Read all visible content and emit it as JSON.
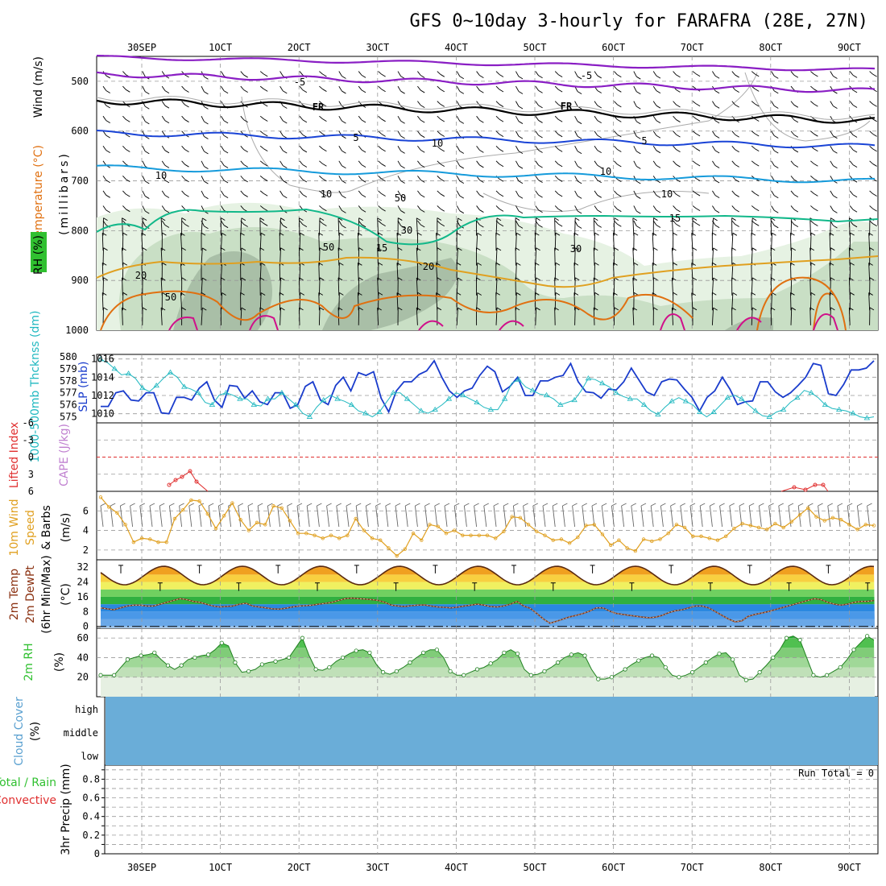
{
  "title": "GFS 0~10day 3-hourly for FARAFRA (28E, 27N)",
  "time_labels": [
    "30SEP",
    "1OCT",
    "2OCT",
    "3OCT",
    "4OCT",
    "5OCT",
    "6OCT",
    "7OCT",
    "8OCT",
    "9OCT"
  ],
  "colors": {
    "purple": "#8a1ec4",
    "black": "#000000",
    "blue": "#1a44d6",
    "lightblue": "#169bdb",
    "green": "#12b88a",
    "orange": "#e0a020",
    "darkorange": "#e07010",
    "magenta": "#d0108a",
    "cyan": "#20b8c0",
    "slp": "#1a3ccc",
    "red": "#e03030",
    "rh": "#30c030",
    "cloud": "#6aadd8"
  },
  "panels": {
    "upper": {
      "ylabel_wind": "Wind (m/s)",
      "ylabel_temp": "Temperature (°C)",
      "ylabel_rh": "RH (%)",
      "ylabel_units": "(millibars)",
      "yticks": [
        "500",
        "600",
        "700",
        "800",
        "900",
        "1000"
      ],
      "labels": [
        {
          "text": "-5",
          "color": "purple"
        },
        {
          "text": "-5",
          "color": "purple"
        },
        {
          "text": "FR",
          "color": "black"
        },
        {
          "text": "FR",
          "color": "black"
        },
        {
          "text": "5",
          "color": "blue"
        },
        {
          "text": "5",
          "color": "blue"
        },
        {
          "text": "10",
          "color": "lightblue"
        },
        {
          "text": "10",
          "color": "lightblue"
        },
        {
          "text": "15",
          "color": "green"
        },
        {
          "text": "15",
          "color": "green"
        },
        {
          "text": "20",
          "color": "orange"
        },
        {
          "text": "20",
          "color": "orange"
        },
        {
          "text": "10",
          "color": "gray"
        },
        {
          "text": "10",
          "color": "gray"
        },
        {
          "text": "10",
          "color": "gray"
        },
        {
          "text": "30",
          "color": "gray"
        },
        {
          "text": "50",
          "color": "gray"
        },
        {
          "text": "50",
          "color": "gray"
        },
        {
          "text": "50",
          "color": "gray"
        },
        {
          "text": "30",
          "color": "gray"
        }
      ]
    },
    "thickness": {
      "ylabel_thk": "1000-500mb Thcknss (dm)",
      "ylabel_slp": "SLP (mb)",
      "yticks_left": [
        "575",
        "576",
        "577",
        "578",
        "579",
        "580"
      ],
      "yticks_right": [
        "1010",
        "1012",
        "1014",
        "1016"
      ]
    },
    "cape": {
      "ylabel_li": "Lifted Index",
      "ylabel_cape": "CAPE (J/kg)",
      "yticks": [
        "-6",
        "-3",
        "0",
        "3",
        "6"
      ]
    },
    "wind10": {
      "ylabel": "10m Wind Speed & Barbs",
      "ylabel_units": "(m/s)",
      "yticks": [
        "2",
        "4",
        "6"
      ]
    },
    "temp2m": {
      "ylabel1": "2m Temp",
      "ylabel2": "2m DewPt",
      "ylabel3": "(6hr Min/Max)",
      "ylabel_units": "(°C)",
      "yticks": [
        "0",
        "8",
        "16",
        "24",
        "32"
      ]
    },
    "rh2m": {
      "ylabel": "2m RH",
      "ylabel_units": "(%)",
      "yticks": [
        "20",
        "40",
        "60"
      ]
    },
    "cloud": {
      "ylabel": "Cloud Cover",
      "ylabel_units": "(%)",
      "levels": [
        "high",
        "middle",
        "low"
      ]
    },
    "precip": {
      "ylabel1": "Total / Rain",
      "ylabel2": "Convective",
      "ylabel3": "3hr Precip (mm)",
      "yticks": [
        "0",
        "0.2",
        "0.4",
        "0.6",
        "0.8"
      ],
      "run_total": "Run Total = 0"
    }
  },
  "chart_data": [
    {
      "type": "line",
      "name": "slp",
      "ylabel": "SLP (mb)",
      "ylim": [
        1009,
        1016.5
      ],
      "values": [
        1010.8,
        1010.8,
        1012.3,
        1012.5,
        1011.5,
        1011.4,
        1012.3,
        1012.3,
        1010.1,
        1010,
        1011.8,
        1011.8,
        1011.5,
        1012.8,
        1013.5,
        1011.5,
        1010.7,
        1013.1,
        1013,
        1011.7,
        1012.5,
        1011.3,
        1011,
        1012.3,
        1012.3,
        1010.6,
        1011,
        1013,
        1013.5,
        1011.5,
        1011,
        1013.1,
        1014,
        1012.5,
        1014.5,
        1014.2,
        1014.6,
        1011.7,
        1010.2,
        1012.5,
        1013.5,
        1013.5,
        1014.3,
        1014.7,
        1015.8,
        1014,
        1012.5,
        1011.8,
        1012.5,
        1012.8,
        1014.2,
        1015.2,
        1014.6,
        1012.4,
        1013,
        1014,
        1012,
        1012,
        1013.6,
        1013.6,
        1014,
        1014.2,
        1015.5,
        1013.5,
        1012.4,
        1012.3,
        1011.7,
        1012.7,
        1012.6,
        1013.5,
        1015,
        1013.7,
        1012.4,
        1012,
        1013.5,
        1013.8,
        1013.7,
        1012.7,
        1011.8,
        1010.3,
        1011.8,
        1012.5,
        1014,
        1012.7,
        1011,
        1011.3,
        1011.4,
        1013.5,
        1013.5,
        1012.4,
        1011.8,
        1012.3,
        1013.1,
        1014,
        1015.5,
        1015.3,
        1012.2,
        1012,
        1013.2,
        1014.8,
        1014.8,
        1015,
        1015.8
      ]
    },
    {
      "type": "line",
      "name": "thickness",
      "ylabel": "1000-500mb Thcknss (dm)",
      "ylim": [
        574.5,
        580.2
      ],
      "values": [
        579.8,
        579.5,
        579,
        578.5,
        578.6,
        578.2,
        577.4,
        577.1,
        577.6,
        578.2,
        578.7,
        578.3,
        577.5,
        577.3,
        577,
        576.2,
        576,
        576.8,
        577,
        576.8,
        576.5,
        576.5,
        576,
        575.9,
        576.5,
        576.5,
        577,
        576.5,
        576,
        575.3,
        575,
        575.8,
        576.4,
        576.8,
        576.5,
        576.3,
        576,
        575.5,
        575.3,
        575,
        575.4,
        576.2,
        577,
        577,
        576.5,
        576,
        575.5,
        575.3,
        575.6,
        576,
        576.5,
        577,
        576.8,
        576.5,
        576.2,
        575.8,
        575.6,
        575.6,
        576.5,
        577.8,
        578.1,
        577.5,
        577.2,
        576.9,
        576.8,
        576.5,
        576,
        576.2,
        576.4,
        577.2,
        578.2,
        578.1,
        577.8,
        577.5,
        577,
        576.7,
        576.5,
        576.5,
        576,
        575.5,
        575.2,
        575.8,
        576.3,
        576.6,
        576.3,
        576,
        575.4,
        575,
        575.4,
        576,
        576.6,
        576.8,
        576.5,
        576,
        575.5,
        575.1,
        575,
        575.4,
        575.6,
        576.2,
        576.6,
        577.2,
        577,
        576.6,
        576,
        575.7,
        575.6,
        575.5,
        575.3,
        575,
        574.9,
        575
      ]
    },
    {
      "type": "line",
      "name": "10m wind speed",
      "ylabel": "(m/s)",
      "ylim": [
        1,
        8
      ],
      "values": [
        7.4,
        6.4,
        5.8,
        4.6,
        2.8,
        3.2,
        3.1,
        2.8,
        2.8,
        5.2,
        6.1,
        7.1,
        7,
        5.7,
        4.2,
        5.5,
        6.8,
        5.1,
        4,
        4.8,
        4.6,
        6.5,
        6.3,
        5,
        3.7,
        3.7,
        3.5,
        3.2,
        3.5,
        3.2,
        3.5,
        5.2,
        4,
        3.2,
        3,
        2.2,
        1.4,
        2.1,
        3.7,
        3,
        4.6,
        4.4,
        3.7,
        4,
        3.5,
        3.5,
        3.5,
        3.5,
        3.2,
        3.9,
        5.4,
        5.3,
        4.6,
        3.9,
        3.5,
        3,
        3.1,
        2.7,
        3.3,
        4.5,
        4.6,
        3.6,
        2.5,
        3,
        2.2,
        1.9,
        3.1,
        2.9,
        3.1,
        3.7,
        4.6,
        4.3,
        3.4,
        3.4,
        3.2,
        3,
        3.4,
        4.2,
        4.7,
        4.5,
        4.3,
        4.1,
        4.7,
        4.3,
        4.9,
        5.6,
        6.3,
        5.4,
        5,
        5.3,
        5.1,
        4.6,
        4.1,
        4.6,
        4.5
      ]
    },
    {
      "type": "area",
      "name": "2m temp",
      "ylabel": "(°C)",
      "ylim": [
        -1,
        36
      ],
      "period_hours": 24,
      "min": 22.5,
      "max": 32.5
    },
    {
      "type": "line",
      "name": "2m dewpoint",
      "ylabel": "(°C)",
      "ylim": [
        -1,
        36
      ],
      "values": [
        10,
        9.5,
        9,
        10,
        11,
        11.5,
        11.5,
        11,
        11,
        12,
        13,
        14,
        15,
        14.5,
        13.5,
        13,
        12,
        11,
        10.5,
        10.8,
        11,
        12,
        12.5,
        11,
        10.5,
        10,
        9.5,
        9.3,
        9.8,
        10.5,
        11,
        11.2,
        11.5,
        12,
        12.5,
        13,
        14,
        15,
        15.3,
        15,
        14.8,
        14.5,
        14,
        13,
        11.5,
        11,
        10.8,
        11.2,
        11.5,
        11.6,
        11,
        10.5,
        10.3,
        10,
        10.4,
        11,
        11.5,
        12,
        11.5,
        10.7,
        10.5,
        11,
        12,
        13.5,
        11,
        9.8,
        7,
        4,
        1.7,
        2.8,
        4,
        5.2,
        6,
        7,
        8.3,
        10,
        10,
        8.3,
        7,
        6.5,
        6,
        5.5,
        5,
        4.7,
        5,
        6,
        7.5,
        8.5,
        9,
        10,
        11,
        11,
        10,
        8,
        6,
        4,
        2.5,
        3,
        5.5,
        6.5,
        7.2,
        8,
        9,
        10,
        11,
        12,
        13,
        14,
        15,
        14.5,
        13,
        12,
        11.5,
        12,
        13,
        13.5,
        13.5,
        14
      ]
    },
    {
      "type": "area",
      "name": "2m RH",
      "ylabel": "(%)",
      "ylim": [
        0,
        70
      ],
      "values": [
        22,
        22,
        22,
        30,
        38,
        40,
        42,
        43,
        45,
        38,
        32,
        28,
        32,
        38,
        40,
        42,
        43,
        48,
        55,
        52,
        35,
        25,
        26,
        28,
        33,
        35,
        36,
        38,
        40,
        50,
        60,
        42,
        28,
        27,
        30,
        36,
        40,
        44,
        47,
        48,
        45,
        33,
        25,
        23,
        26,
        30,
        35,
        40,
        45,
        48,
        48,
        40,
        26,
        22,
        22,
        25,
        28,
        30,
        34,
        38,
        45,
        48,
        44,
        28,
        22,
        23,
        26,
        30,
        35,
        40,
        43,
        45,
        42,
        28,
        18,
        18,
        20,
        24,
        28,
        33,
        37,
        40,
        42,
        40,
        30,
        22,
        20,
        22,
        25,
        30,
        35,
        40,
        44,
        45,
        38,
        22,
        17,
        18,
        25,
        32,
        40,
        48,
        60,
        62,
        58,
        40,
        22,
        20,
        22,
        26,
        30,
        38,
        48,
        55,
        62,
        58
      ]
    }
  ]
}
